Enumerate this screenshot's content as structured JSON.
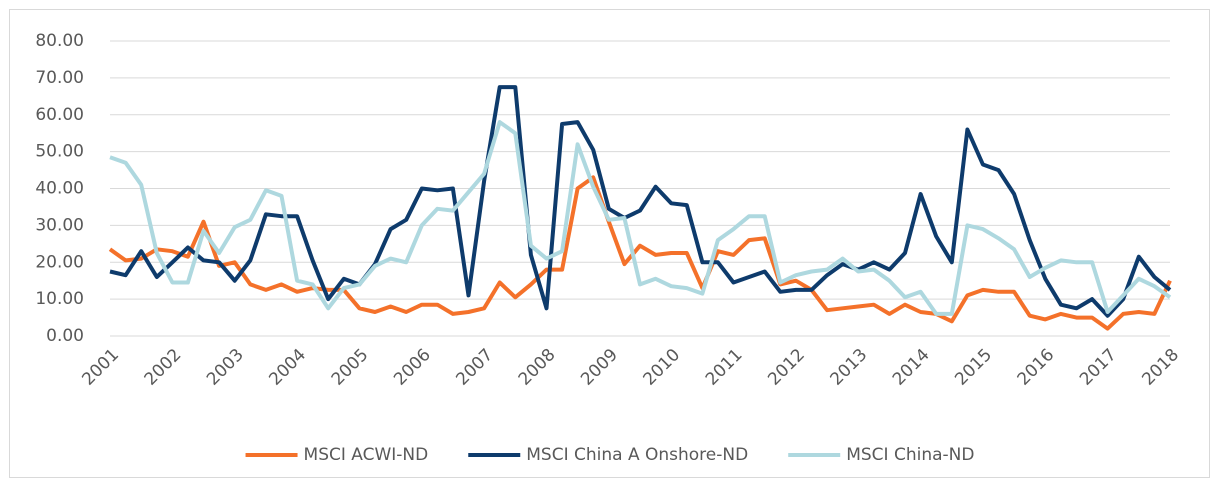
{
  "chart_data": {
    "type": "line",
    "categories": [
      "2001",
      null,
      null,
      null,
      "2002",
      null,
      null,
      null,
      "2003",
      null,
      null,
      null,
      "2004",
      null,
      null,
      null,
      "2005",
      null,
      null,
      null,
      "2006",
      null,
      null,
      null,
      "2007",
      null,
      null,
      null,
      "2008",
      null,
      null,
      null,
      "2009",
      null,
      null,
      null,
      "2010",
      null,
      null,
      null,
      "2011",
      null,
      null,
      null,
      "2012",
      null,
      null,
      null,
      "2013",
      null,
      null,
      null,
      "2014",
      null,
      null,
      null,
      "2015",
      null,
      null,
      null,
      "2016",
      null,
      null,
      null,
      "2017",
      null,
      null,
      null,
      "2018"
    ],
    "series": [
      {
        "name": "MSCI ACWI-ND",
        "color": "#f4712a",
        "values": [
          23.5,
          20.5,
          21,
          23.5,
          23,
          21.5,
          31,
          19,
          20,
          14,
          12.5,
          14,
          12,
          13,
          12.5,
          12.5,
          7.5,
          6.5,
          8,
          6.5,
          8.5,
          8.5,
          6,
          6.5,
          7.5,
          14.5,
          10.5,
          14,
          18,
          18,
          40,
          43,
          31,
          19.5,
          24.5,
          22,
          22.5,
          22.5,
          13,
          23,
          22,
          26,
          26.5,
          14,
          15,
          12.5,
          7,
          7.5,
          8,
          8.5,
          6,
          8.5,
          6.5,
          6,
          4,
          11,
          12.5,
          12,
          12,
          5.5,
          4.5,
          6,
          5,
          5,
          2,
          6,
          6.5,
          6,
          15
        ]
      },
      {
        "name": "MSCI China A Onshore-ND",
        "color": "#0e3b6c",
        "values": [
          17.5,
          16.5,
          23,
          16,
          20,
          24,
          20.5,
          20,
          15,
          20.5,
          33,
          32.5,
          32.5,
          20.5,
          10,
          15.5,
          14,
          19.5,
          29,
          31.5,
          40,
          39.5,
          40,
          11,
          42,
          67.5,
          67.5,
          22,
          7.5,
          57.5,
          58,
          50.5,
          34.5,
          32,
          34,
          40.5,
          36,
          35.5,
          20,
          20,
          14.5,
          16,
          17.5,
          12,
          12.5,
          12.5,
          16.5,
          19.5,
          18,
          20,
          18,
          22.5,
          38.5,
          27,
          20,
          56,
          46.5,
          45,
          38.5,
          26,
          15.5,
          8.5,
          7.5,
          10,
          5.5,
          10,
          21.5,
          16,
          12.5
        ]
      },
      {
        "name": "MSCI China-ND",
        "color": "#aed8df",
        "values": [
          48.5,
          47,
          41,
          22.5,
          14.5,
          14.5,
          28.5,
          22.5,
          29.5,
          31.5,
          39.5,
          38,
          15,
          14,
          7.5,
          13,
          14,
          19,
          21,
          20,
          30,
          34.5,
          34,
          39,
          44,
          58,
          55,
          24.5,
          21,
          23,
          52,
          40.5,
          31.5,
          32,
          14,
          15.5,
          13.5,
          13,
          11.5,
          26,
          29,
          32.5,
          32.5,
          14.5,
          16.5,
          17.5,
          18,
          21,
          17.5,
          18,
          15,
          10.5,
          12,
          6,
          6,
          30,
          29,
          26.5,
          23.5,
          16,
          18.5,
          20.5,
          20,
          20,
          6.5,
          11,
          15.5,
          13.5,
          10.5
        ]
      }
    ],
    "ylim": [
      0,
      80
    ],
    "yticks": [
      {
        "value": 0,
        "label": "0.00"
      },
      {
        "value": 10,
        "label": "10.00"
      },
      {
        "value": 20,
        "label": "20.00"
      },
      {
        "value": 30,
        "label": "30.00"
      },
      {
        "value": 40,
        "label": "40.00"
      },
      {
        "value": 50,
        "label": "50.00"
      },
      {
        "value": 60,
        "label": "60.00"
      },
      {
        "value": 70,
        "label": "70.00"
      },
      {
        "value": 80,
        "label": "80.00"
      }
    ],
    "grid": true,
    "legend": "bottom"
  }
}
